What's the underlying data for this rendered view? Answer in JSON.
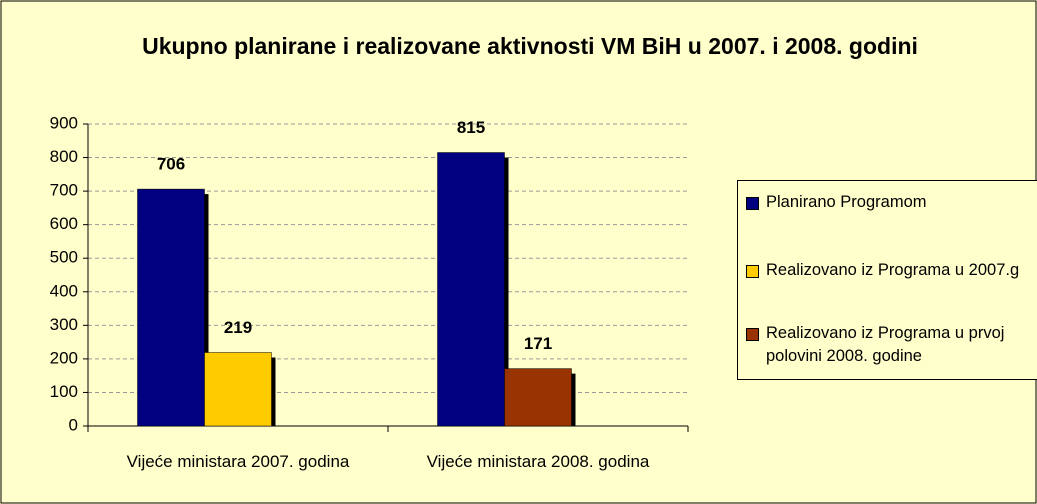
{
  "chart_data": {
    "type": "bar",
    "title": "Ukupno planirane i realizovane aktivnosti VM BiH u 2007. i 2008. godini",
    "categories": [
      "Vijeće ministara 2007. godina",
      "Vijeće ministara 2008. godina"
    ],
    "series": [
      {
        "name": "Planirano Programom",
        "color": "#000080",
        "values": [
          706,
          815
        ]
      },
      {
        "name": "Realizovano iz Programa u 2007.g",
        "color": "#ffcc00",
        "values": [
          219,
          null
        ]
      },
      {
        "name": "Realizovano iz Programa u prvoj polovini 2008. godine",
        "color": "#993300",
        "values": [
          null,
          171
        ]
      }
    ],
    "ylim": [
      0,
      900
    ],
    "yticks": [
      0,
      100,
      200,
      300,
      400,
      500,
      600,
      700,
      800,
      900
    ],
    "grid": true,
    "legend": "right"
  }
}
